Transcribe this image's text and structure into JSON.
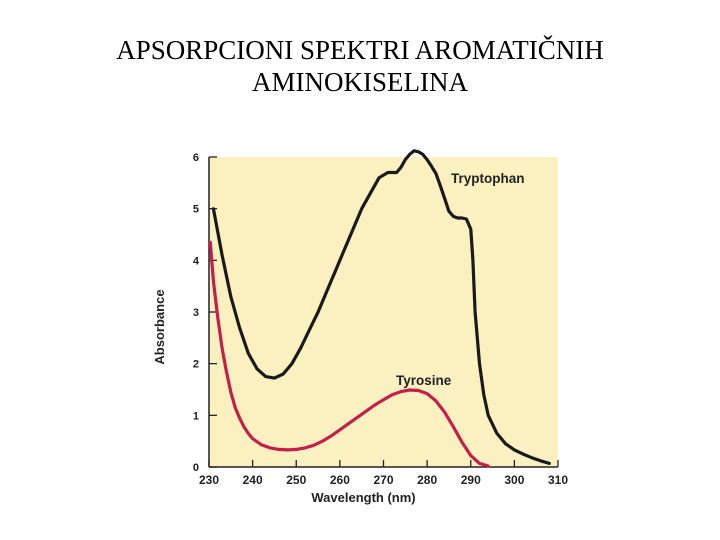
{
  "title": {
    "line1": "APSORPCIONI SPEKTRI AROMATIČNIH",
    "line2": "AMINOKISELINA"
  },
  "chart_data": {
    "type": "line",
    "title": "APSORPCIONI SPEKTRI AROMATIČNIH AMINOKISELINA",
    "xlabel": "Wavelength (nm)",
    "ylabel": "Absorbance",
    "xlim": [
      230,
      310
    ],
    "ylim": [
      0,
      6
    ],
    "xticks": [
      230,
      240,
      250,
      260,
      270,
      280,
      290,
      300,
      310
    ],
    "yticks": [
      0,
      1,
      2,
      3,
      4,
      5,
      6
    ],
    "grid": false,
    "background": "#fbf0c0",
    "series": [
      {
        "name": "Tryptophan",
        "color": "#1a1a1a",
        "x": [
          231,
          233,
          235,
          237,
          239,
          241,
          243,
          245,
          247,
          249,
          251,
          253,
          255,
          257,
          259,
          261,
          263,
          265,
          267,
          269,
          271,
          273,
          274,
          275,
          276,
          277,
          278,
          279,
          280,
          281,
          282,
          283,
          284,
          285,
          286,
          287,
          288,
          289,
          290,
          290.5,
          291,
          292,
          293,
          294,
          296,
          298,
          300,
          302,
          304,
          306,
          308
        ],
        "y": [
          5.0,
          4.1,
          3.3,
          2.7,
          2.2,
          1.9,
          1.75,
          1.72,
          1.8,
          2.0,
          2.3,
          2.65,
          3.0,
          3.4,
          3.8,
          4.2,
          4.6,
          5.0,
          5.3,
          5.6,
          5.7,
          5.7,
          5.8,
          5.95,
          6.05,
          6.12,
          6.1,
          6.05,
          5.95,
          5.82,
          5.68,
          5.45,
          5.2,
          4.95,
          4.85,
          4.82,
          4.82,
          4.8,
          4.6,
          4.0,
          3.0,
          2.0,
          1.4,
          1.0,
          0.65,
          0.45,
          0.33,
          0.25,
          0.18,
          0.12,
          0.07
        ]
      },
      {
        "name": "Tyrosine",
        "color": "#c41e4a",
        "x": [
          230.3,
          231,
          232,
          233,
          234,
          235,
          236,
          237,
          238,
          239,
          240,
          242,
          244,
          246,
          248,
          250,
          252,
          254,
          256,
          258,
          260,
          262,
          264,
          266,
          268,
          270,
          272,
          274,
          276,
          278,
          280,
          282,
          284,
          286,
          288,
          290,
          292,
          294
        ],
        "y": [
          4.35,
          3.6,
          2.9,
          2.3,
          1.85,
          1.45,
          1.15,
          0.95,
          0.78,
          0.65,
          0.55,
          0.43,
          0.37,
          0.34,
          0.33,
          0.34,
          0.37,
          0.42,
          0.5,
          0.6,
          0.72,
          0.84,
          0.96,
          1.08,
          1.2,
          1.3,
          1.4,
          1.46,
          1.49,
          1.48,
          1.42,
          1.28,
          1.06,
          0.78,
          0.48,
          0.22,
          0.07,
          0.02
        ]
      }
    ]
  }
}
